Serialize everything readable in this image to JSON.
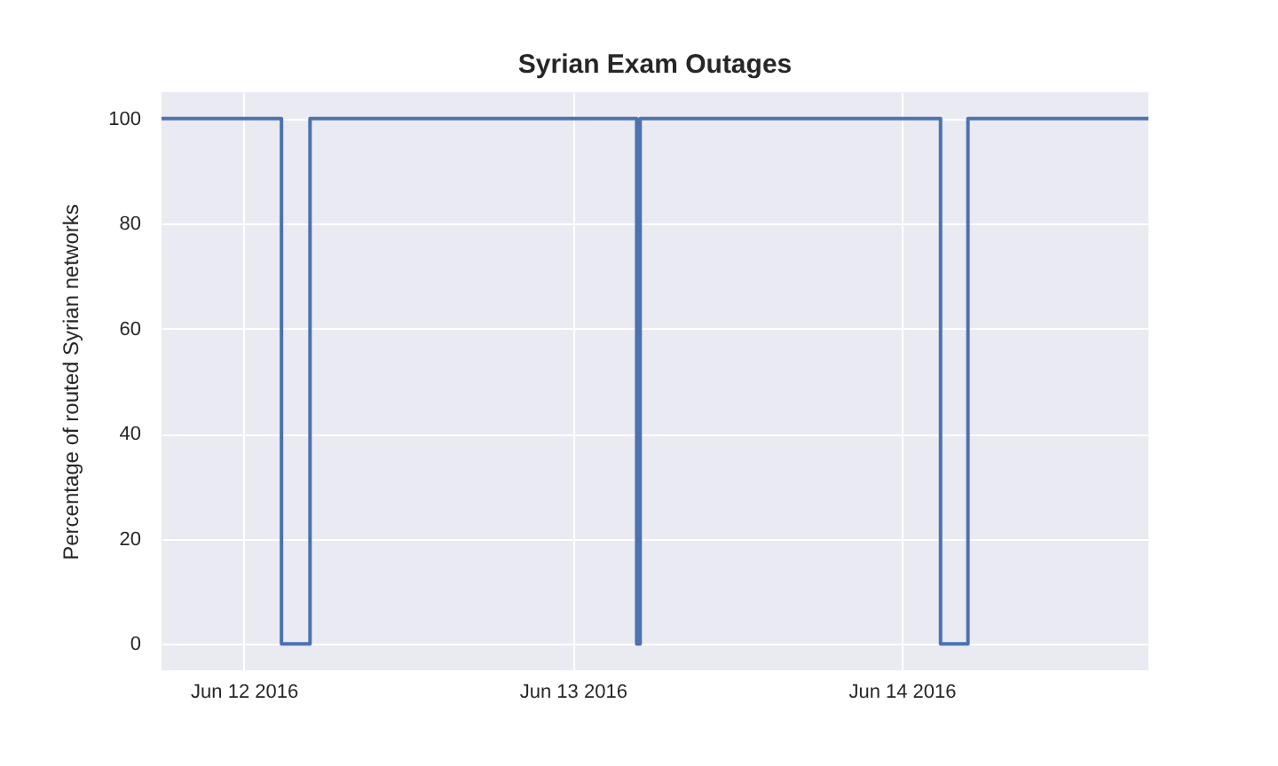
{
  "chart_data": {
    "type": "step",
    "title": "Syrian Exam Outages",
    "ylabel": "Percentage of routed Syrian networks",
    "x": [
      "2016-06-11T18:00",
      "2016-06-12T02:45",
      "2016-06-12T04:50",
      "2016-06-13T04:40",
      "2016-06-13T04:55",
      "2016-06-14T02:50",
      "2016-06-14T04:50",
      "2016-06-14T18:00"
    ],
    "series": [
      {
        "color": "#4c72b0",
        "values": [
          100,
          0,
          100,
          0,
          100,
          0,
          100,
          100
        ]
      }
    ],
    "xlim": [
      "2016-06-11T18:00",
      "2016-06-14T18:00"
    ],
    "xticks": [
      {
        "value": "2016-06-12",
        "label": "Jun 12 2016"
      },
      {
        "value": "2016-06-13",
        "label": "Jun 13 2016"
      },
      {
        "value": "2016-06-14",
        "label": "Jun 14 2016"
      }
    ],
    "ylim": [
      -5,
      105
    ],
    "yticks": [
      0,
      20,
      40,
      60,
      80,
      100
    ],
    "grid": true,
    "line_style": "solid",
    "marker": "none"
  }
}
